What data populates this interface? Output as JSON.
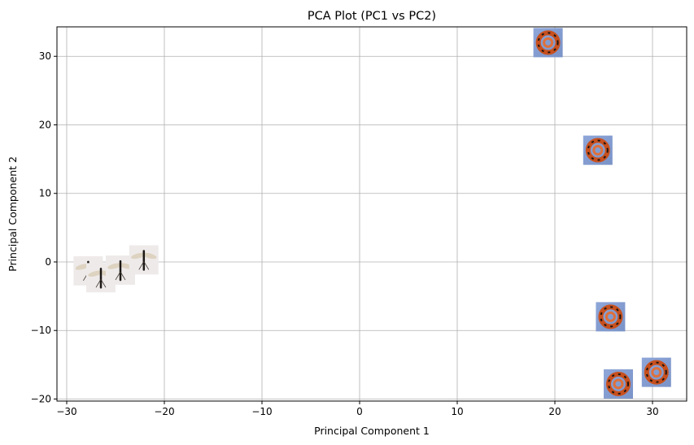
{
  "chart_data": {
    "type": "scatter",
    "title": "PCA Plot (PC1 vs PC2)",
    "xlabel": "Principal Component 1",
    "ylabel": "Principal Component 2",
    "xlim": [
      -31,
      33.5
    ],
    "ylim": [
      -20.3,
      34.3
    ],
    "xticks": [
      -30,
      -20,
      -10,
      0,
      10,
      20,
      30
    ],
    "yticks": [
      -20,
      -10,
      0,
      10,
      20,
      30
    ],
    "grid": true,
    "marker": "image-thumbnail",
    "points": [
      {
        "x": -27.8,
        "y": -1.3,
        "thumb": "insect"
      },
      {
        "x": -26.5,
        "y": -2.3,
        "thumb": "insect"
      },
      {
        "x": -24.5,
        "y": -1.2,
        "thumb": "insect"
      },
      {
        "x": -22.1,
        "y": 0.3,
        "thumb": "insect"
      },
      {
        "x": 19.3,
        "y": 32.0,
        "thumb": "snake"
      },
      {
        "x": 24.4,
        "y": 16.3,
        "thumb": "snake"
      },
      {
        "x": 25.7,
        "y": -8.0,
        "thumb": "snake"
      },
      {
        "x": 26.5,
        "y": -17.8,
        "thumb": "snake"
      },
      {
        "x": 30.4,
        "y": -16.1,
        "thumb": "snake"
      }
    ]
  }
}
